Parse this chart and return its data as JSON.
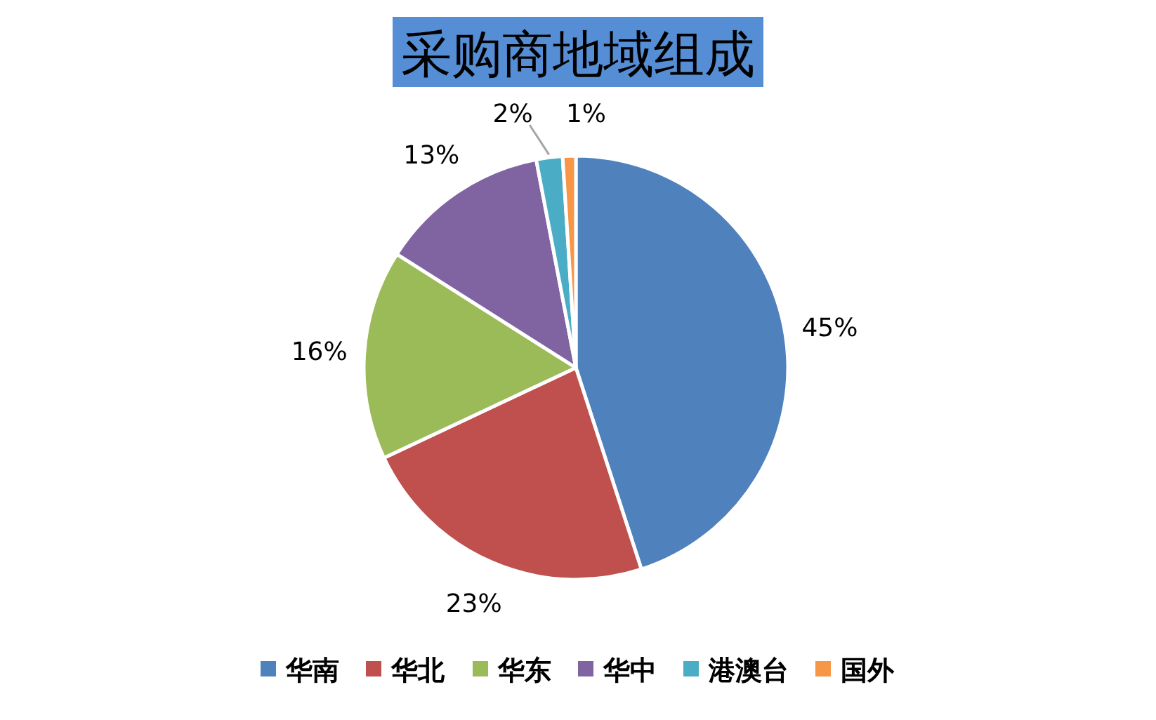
{
  "chart_data": {
    "type": "pie",
    "title": "采购商地域组成",
    "categories": [
      "华南",
      "华北",
      "华东",
      "华中",
      "港澳台",
      "国外"
    ],
    "values": [
      45,
      23,
      16,
      13,
      2,
      1
    ],
    "colors": [
      "#4f81bd",
      "#c0504d",
      "#9bbb59",
      "#8064a2",
      "#4bacc6",
      "#f79646"
    ],
    "value_labels": [
      "45%",
      "23%",
      "16%",
      "13%",
      "2%",
      "1%"
    ],
    "legend": "bottom"
  }
}
